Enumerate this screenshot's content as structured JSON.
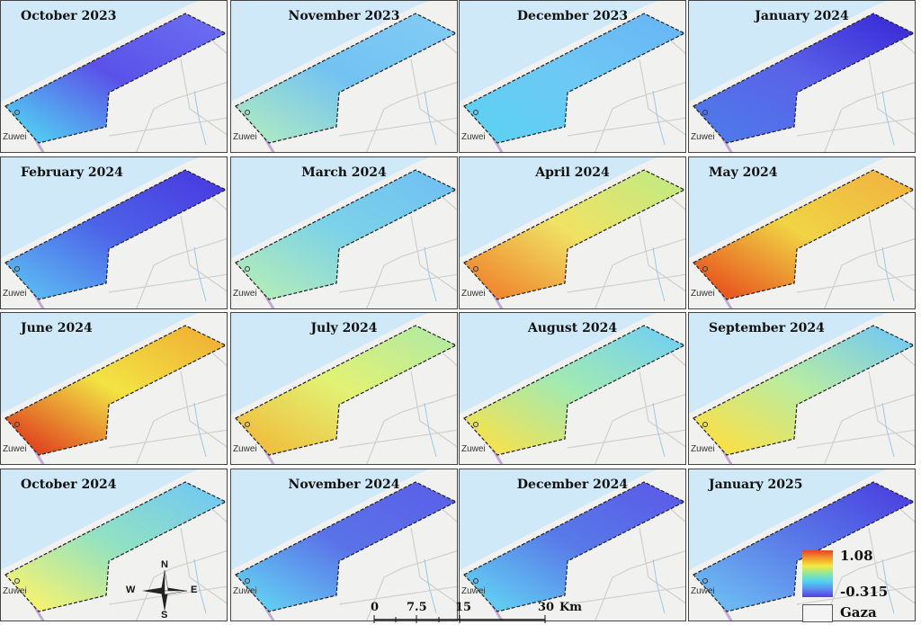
{
  "figure": {
    "panels": [
      {
        "title": "October 2023",
        "colors": [
          "#52c6f2",
          "#5a52e8",
          "#6b6cf2"
        ]
      },
      {
        "title": "November 2023",
        "colors": [
          "#a8e6c8",
          "#72c2f2",
          "#82cbf5"
        ]
      },
      {
        "title": "December 2023",
        "colors": [
          "#5ed0f2",
          "#6ec8f5",
          "#68b6f5"
        ]
      },
      {
        "title": "January 2024",
        "colors": [
          "#4f78ea",
          "#5a62e8",
          "#3a2ad8"
        ]
      },
      {
        "title": "February 2024",
        "colors": [
          "#5ab4f2",
          "#4c62e8",
          "#4a3ae0"
        ]
      },
      {
        "title": "March 2024",
        "colors": [
          "#aeeabc",
          "#7cd2e8",
          "#70c0f2"
        ]
      },
      {
        "title": "April 2024",
        "colors": [
          "#f08a30",
          "#f0e264",
          "#c2ea82"
        ]
      },
      {
        "title": "May 2024",
        "colors": [
          "#e85a20",
          "#f0d444",
          "#f0b440"
        ]
      },
      {
        "title": "June 2024",
        "colors": [
          "#e04a20",
          "#f2e444",
          "#f0b034"
        ]
      },
      {
        "title": "July 2024",
        "colors": [
          "#f0c040",
          "#e2f274",
          "#b2eaa2"
        ]
      },
      {
        "title": "August 2024",
        "colors": [
          "#f2e254",
          "#a2eab2",
          "#72d0f2"
        ]
      },
      {
        "title": "September 2024",
        "colors": [
          "#f8e04a",
          "#baeca2",
          "#72c8f2"
        ]
      },
      {
        "title": "October 2024",
        "colors": [
          "#f2f274",
          "#92e2c2",
          "#72c8f2"
        ]
      },
      {
        "title": "November 2024",
        "colors": [
          "#62caf2",
          "#5a72e8",
          "#5a60e8"
        ]
      },
      {
        "title": "December 2024",
        "colors": [
          "#62caf2",
          "#587ae8",
          "#5a5ae8"
        ]
      },
      {
        "title": "January 2025",
        "colors": [
          "#6cb8f2",
          "#5a7ae8",
          "#4a40e0"
        ]
      }
    ],
    "town_label": "Zuwei",
    "legend": {
      "max": "1.08",
      "min": "-0.315",
      "boundary_label": "Gaza"
    },
    "scale": {
      "ticks": [
        "0",
        "7.5",
        "15",
        "30"
      ],
      "unit": "Km"
    },
    "north_arrow": {
      "n": "N",
      "e": "E",
      "s": "S",
      "w": "W"
    }
  }
}
